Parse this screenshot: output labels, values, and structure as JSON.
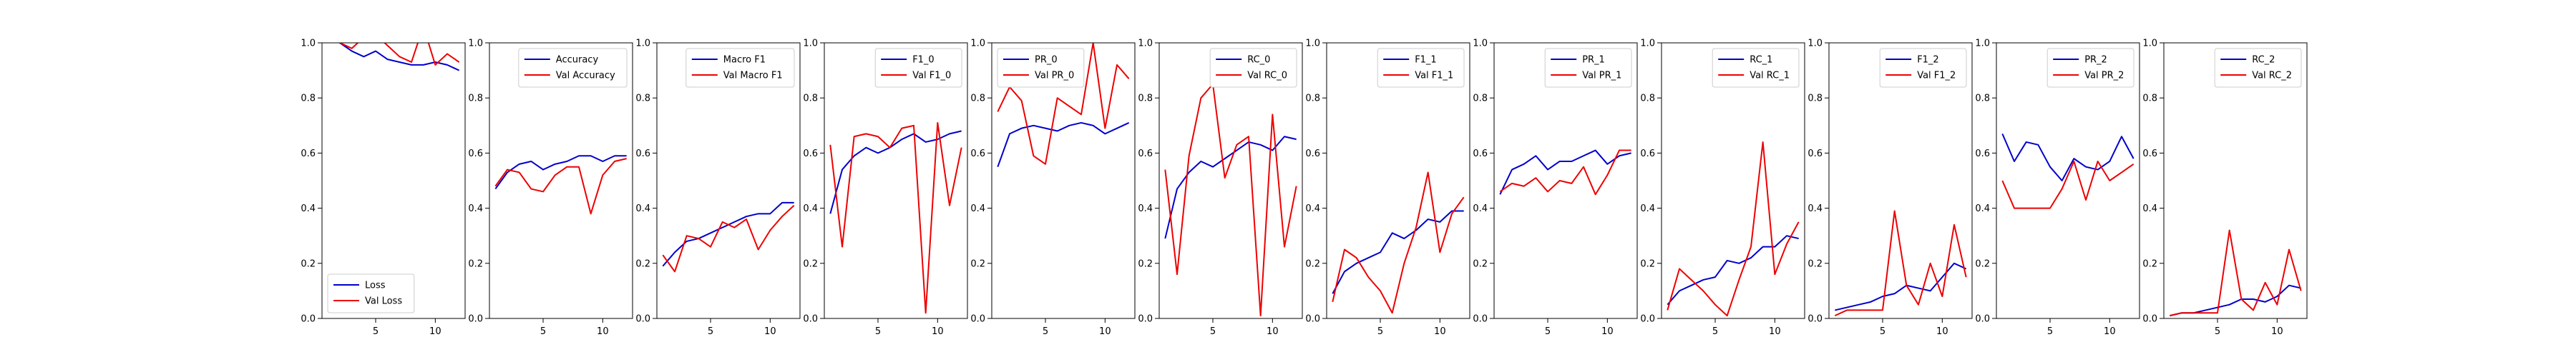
{
  "chart_data": [
    {
      "type": "line",
      "xlim": [
        0.5,
        12.5
      ],
      "ylim": [
        0,
        1
      ],
      "xticks": [
        5,
        10
      ],
      "yticks": [
        0.0,
        0.2,
        0.4,
        0.6,
        0.8,
        1.0
      ],
      "legend": "lower-left",
      "grid": false,
      "x": [
        1,
        2,
        3,
        4,
        5,
        6,
        7,
        8,
        9,
        10,
        11,
        12
      ],
      "series": [
        {
          "name": "Loss",
          "color": "#0000cc",
          "values": [
            1.06,
            1.0,
            0.97,
            0.95,
            0.97,
            0.94,
            0.93,
            0.92,
            0.92,
            0.93,
            0.92,
            0.9
          ]
        },
        {
          "name": "Val Loss",
          "color": "#ee0000",
          "values": [
            1.04,
            1.0,
            0.98,
            1.02,
            1.03,
            0.99,
            0.95,
            0.93,
            1.06,
            0.92,
            0.96,
            0.93
          ]
        }
      ]
    },
    {
      "type": "line",
      "xlim": [
        0.5,
        12.5
      ],
      "ylim": [
        0,
        1
      ],
      "xticks": [
        5,
        10
      ],
      "yticks": [
        0.0,
        0.2,
        0.4,
        0.6,
        0.8,
        1.0
      ],
      "legend": "top-right",
      "grid": false,
      "x": [
        1,
        2,
        3,
        4,
        5,
        6,
        7,
        8,
        9,
        10,
        11,
        12
      ],
      "series": [
        {
          "name": "Accuracy",
          "color": "#0000cc",
          "values": [
            0.47,
            0.53,
            0.56,
            0.57,
            0.54,
            0.56,
            0.57,
            0.59,
            0.59,
            0.57,
            0.59,
            0.59
          ]
        },
        {
          "name": "Val Accuracy",
          "color": "#ee0000",
          "values": [
            0.48,
            0.54,
            0.53,
            0.47,
            0.46,
            0.52,
            0.55,
            0.55,
            0.38,
            0.52,
            0.57,
            0.58
          ]
        }
      ]
    },
    {
      "type": "line",
      "xlim": [
        0.5,
        12.5
      ],
      "ylim": [
        0,
        1
      ],
      "xticks": [
        5,
        10
      ],
      "yticks": [
        0.0,
        0.2,
        0.4,
        0.6,
        0.8,
        1.0
      ],
      "legend": "top-right",
      "grid": false,
      "x": [
        1,
        2,
        3,
        4,
        5,
        6,
        7,
        8,
        9,
        10,
        11,
        12
      ],
      "series": [
        {
          "name": "Macro F1",
          "color": "#0000cc",
          "values": [
            0.19,
            0.24,
            0.28,
            0.29,
            0.31,
            0.33,
            0.35,
            0.37,
            0.38,
            0.38,
            0.42,
            0.42
          ]
        },
        {
          "name": "Val Macro F1",
          "color": "#ee0000",
          "values": [
            0.23,
            0.17,
            0.3,
            0.29,
            0.26,
            0.35,
            0.33,
            0.36,
            0.25,
            0.32,
            0.37,
            0.41
          ]
        }
      ]
    },
    {
      "type": "line",
      "xlim": [
        0.5,
        12.5
      ],
      "ylim": [
        0,
        1
      ],
      "xticks": [
        5,
        10
      ],
      "yticks": [
        0.0,
        0.2,
        0.4,
        0.6,
        0.8,
        1.0
      ],
      "legend": "top-right",
      "grid": false,
      "x": [
        1,
        2,
        3,
        4,
        5,
        6,
        7,
        8,
        9,
        10,
        11,
        12
      ],
      "series": [
        {
          "name": "F1_0",
          "color": "#0000cc",
          "values": [
            0.38,
            0.54,
            0.59,
            0.62,
            0.6,
            0.62,
            0.65,
            0.67,
            0.64,
            0.65,
            0.67,
            0.68
          ]
        },
        {
          "name": "Val F1_0",
          "color": "#ee0000",
          "values": [
            0.63,
            0.26,
            0.66,
            0.67,
            0.66,
            0.62,
            0.69,
            0.7,
            0.02,
            0.71,
            0.41,
            0.62
          ]
        }
      ]
    },
    {
      "type": "line",
      "xlim": [
        0.5,
        12.5
      ],
      "ylim": [
        0,
        1
      ],
      "xticks": [
        5,
        10
      ],
      "yticks": [
        0.0,
        0.2,
        0.4,
        0.6,
        0.8,
        1.0
      ],
      "legend": "top-left",
      "grid": false,
      "x": [
        1,
        2,
        3,
        4,
        5,
        6,
        7,
        8,
        9,
        10,
        11,
        12
      ],
      "series": [
        {
          "name": "PR_0",
          "color": "#0000cc",
          "values": [
            0.55,
            0.67,
            0.69,
            0.7,
            0.69,
            0.68,
            0.7,
            0.71,
            0.7,
            0.67,
            0.69,
            0.71
          ]
        },
        {
          "name": "Val PR_0",
          "color": "#ee0000",
          "values": [
            0.75,
            0.84,
            0.79,
            0.59,
            0.56,
            0.8,
            0.77,
            0.74,
            1.0,
            0.69,
            0.92,
            0.87
          ]
        }
      ]
    },
    {
      "type": "line",
      "xlim": [
        0.5,
        12.5
      ],
      "ylim": [
        0,
        1
      ],
      "xticks": [
        5,
        10
      ],
      "yticks": [
        0.0,
        0.2,
        0.4,
        0.6,
        0.8,
        1.0
      ],
      "legend": "top-right",
      "grid": false,
      "x": [
        1,
        2,
        3,
        4,
        5,
        6,
        7,
        8,
        9,
        10,
        11,
        12
      ],
      "series": [
        {
          "name": "RC_0",
          "color": "#0000cc",
          "values": [
            0.29,
            0.47,
            0.53,
            0.57,
            0.55,
            0.58,
            0.61,
            0.64,
            0.63,
            0.61,
            0.66,
            0.65
          ]
        },
        {
          "name": "Val RC_0",
          "color": "#ee0000",
          "values": [
            0.54,
            0.16,
            0.59,
            0.8,
            0.85,
            0.51,
            0.63,
            0.66,
            0.01,
            0.74,
            0.26,
            0.48
          ]
        }
      ]
    },
    {
      "type": "line",
      "xlim": [
        0.5,
        12.5
      ],
      "ylim": [
        0,
        1
      ],
      "xticks": [
        5,
        10
      ],
      "yticks": [
        0.0,
        0.2,
        0.4,
        0.6,
        0.8,
        1.0
      ],
      "legend": "top-right",
      "grid": false,
      "x": [
        1,
        2,
        3,
        4,
        5,
        6,
        7,
        8,
        9,
        10,
        11,
        12
      ],
      "series": [
        {
          "name": "F1_1",
          "color": "#0000cc",
          "values": [
            0.09,
            0.17,
            0.2,
            0.22,
            0.24,
            0.31,
            0.29,
            0.32,
            0.36,
            0.35,
            0.39,
            0.39
          ]
        },
        {
          "name": "Val F1_1",
          "color": "#ee0000",
          "values": [
            0.06,
            0.25,
            0.22,
            0.15,
            0.1,
            0.02,
            0.2,
            0.33,
            0.53,
            0.24,
            0.38,
            0.44
          ]
        }
      ]
    },
    {
      "type": "line",
      "xlim": [
        0.5,
        12.5
      ],
      "ylim": [
        0,
        1
      ],
      "xticks": [
        5,
        10
      ],
      "yticks": [
        0.0,
        0.2,
        0.4,
        0.6,
        0.8,
        1.0
      ],
      "legend": "top-right",
      "grid": false,
      "x": [
        1,
        2,
        3,
        4,
        5,
        6,
        7,
        8,
        9,
        10,
        11,
        12
      ],
      "series": [
        {
          "name": "PR_1",
          "color": "#0000cc",
          "values": [
            0.45,
            0.54,
            0.56,
            0.59,
            0.54,
            0.57,
            0.57,
            0.59,
            0.61,
            0.56,
            0.59,
            0.6
          ]
        },
        {
          "name": "Val PR_1",
          "color": "#ee0000",
          "values": [
            0.46,
            0.49,
            0.48,
            0.51,
            0.46,
            0.5,
            0.49,
            0.55,
            0.45,
            0.52,
            0.61,
            0.61
          ]
        }
      ]
    },
    {
      "type": "line",
      "xlim": [
        0.5,
        12.5
      ],
      "ylim": [
        0,
        1
      ],
      "xticks": [
        5,
        10
      ],
      "yticks": [
        0.0,
        0.2,
        0.4,
        0.6,
        0.8,
        1.0
      ],
      "legend": "top-right",
      "grid": false,
      "x": [
        1,
        2,
        3,
        4,
        5,
        6,
        7,
        8,
        9,
        10,
        11,
        12
      ],
      "series": [
        {
          "name": "RC_1",
          "color": "#0000cc",
          "values": [
            0.05,
            0.1,
            0.12,
            0.14,
            0.15,
            0.21,
            0.2,
            0.22,
            0.26,
            0.26,
            0.3,
            0.29
          ]
        },
        {
          "name": "Val RC_1",
          "color": "#ee0000",
          "values": [
            0.03,
            0.18,
            0.14,
            0.1,
            0.05,
            0.01,
            0.14,
            0.26,
            0.64,
            0.16,
            0.27,
            0.35
          ]
        }
      ]
    },
    {
      "type": "line",
      "xlim": [
        0.5,
        12.5
      ],
      "ylim": [
        0,
        1
      ],
      "xticks": [
        5,
        10
      ],
      "yticks": [
        0.0,
        0.2,
        0.4,
        0.6,
        0.8,
        1.0
      ],
      "legend": "top-right",
      "grid": false,
      "x": [
        1,
        2,
        3,
        4,
        5,
        6,
        7,
        8,
        9,
        10,
        11,
        12
      ],
      "series": [
        {
          "name": "F1_2",
          "color": "#0000cc",
          "values": [
            0.03,
            0.04,
            0.05,
            0.06,
            0.08,
            0.09,
            0.12,
            0.11,
            0.1,
            0.15,
            0.2,
            0.18
          ]
        },
        {
          "name": "Val F1_2",
          "color": "#ee0000",
          "values": [
            0.01,
            0.03,
            0.03,
            0.03,
            0.03,
            0.39,
            0.12,
            0.05,
            0.2,
            0.08,
            0.34,
            0.15
          ]
        }
      ]
    },
    {
      "type": "line",
      "xlim": [
        0.5,
        12.5
      ],
      "ylim": [
        0,
        1
      ],
      "xticks": [
        5,
        10
      ],
      "yticks": [
        0.0,
        0.2,
        0.4,
        0.6,
        0.8,
        1.0
      ],
      "legend": "top-right",
      "grid": false,
      "x": [
        1,
        2,
        3,
        4,
        5,
        6,
        7,
        8,
        9,
        10,
        11,
        12
      ],
      "series": [
        {
          "name": "PR_2",
          "color": "#0000cc",
          "values": [
            0.67,
            0.57,
            0.64,
            0.63,
            0.55,
            0.5,
            0.58,
            0.55,
            0.54,
            0.57,
            0.66,
            0.58
          ]
        },
        {
          "name": "Val PR_2",
          "color": "#ee0000",
          "values": [
            0.5,
            0.4,
            0.4,
            0.4,
            0.4,
            0.47,
            0.57,
            0.43,
            0.57,
            0.5,
            0.53,
            0.56
          ]
        }
      ]
    },
    {
      "type": "line",
      "xlim": [
        0.5,
        12.5
      ],
      "ylim": [
        0,
        1
      ],
      "xticks": [
        5,
        10
      ],
      "yticks": [
        0.0,
        0.2,
        0.4,
        0.6,
        0.8,
        1.0
      ],
      "legend": "top-right",
      "grid": false,
      "x": [
        1,
        2,
        3,
        4,
        5,
        6,
        7,
        8,
        9,
        10,
        11,
        12
      ],
      "series": [
        {
          "name": "RC_2",
          "color": "#0000cc",
          "values": [
            0.01,
            0.02,
            0.02,
            0.03,
            0.04,
            0.05,
            0.07,
            0.07,
            0.06,
            0.08,
            0.12,
            0.11
          ]
        },
        {
          "name": "Val RC_2",
          "color": "#ee0000",
          "values": [
            0.01,
            0.02,
            0.02,
            0.02,
            0.02,
            0.32,
            0.07,
            0.03,
            0.13,
            0.05,
            0.25,
            0.1
          ]
        }
      ]
    }
  ]
}
